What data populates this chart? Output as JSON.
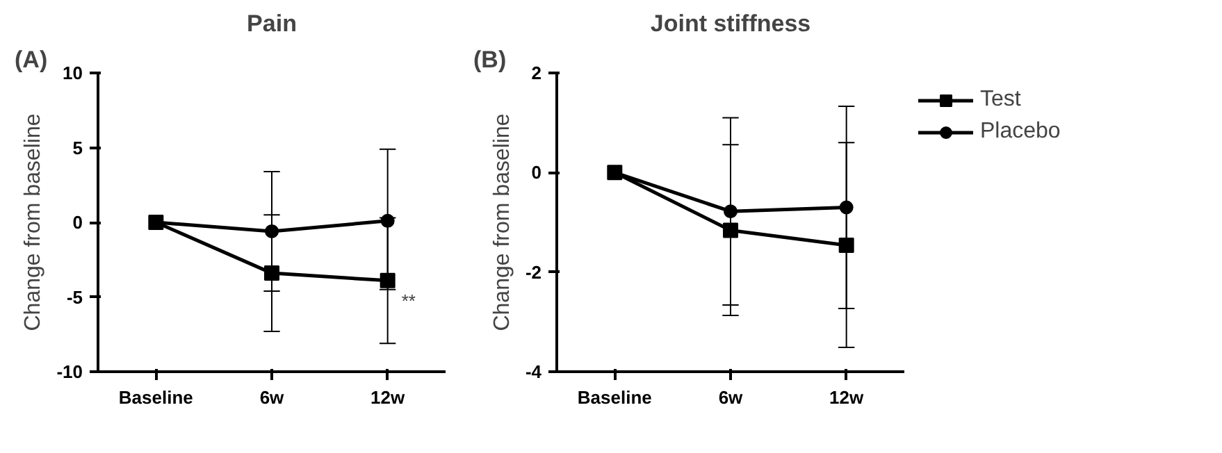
{
  "chart_data": [
    {
      "type": "line",
      "title": "Pain",
      "annotations": [
        "(A)",
        {
          "text": "**",
          "x": "12w",
          "y": -3.9
        }
      ],
      "ylabel": "Change from baseline",
      "categories": [
        "Baseline",
        "6w",
        "12w"
      ],
      "ylim": [
        -10,
        10
      ],
      "yticks": [
        -10,
        -5,
        0,
        5,
        10
      ],
      "grid": false,
      "legend": false,
      "series": [
        {
          "color": "#000000",
          "marker": "square",
          "values": [
            0,
            -3.4,
            -3.9
          ],
          "errors": [
            null,
            [
              -7.3,
              0.5
            ],
            [
              -8.1,
              0.3
            ]
          ]
        },
        {
          "color": "#000000",
          "marker": "circle",
          "values": [
            0,
            -0.6,
            0.1
          ],
          "errors": [
            null,
            [
              -4.6,
              3.4
            ],
            [
              -4.5,
              4.9
            ]
          ]
        }
      ]
    },
    {
      "type": "line",
      "title": "Joint stiffness",
      "annotations": [
        "(B)"
      ],
      "ylabel": "Change from baseline",
      "categories": [
        "Baseline",
        "6w",
        "12w"
      ],
      "ylim": [
        -4,
        2
      ],
      "yticks": [
        -4,
        -2,
        0,
        2
      ],
      "grid": false,
      "legend": "right",
      "series": [
        {
          "name": "Test",
          "color": "#000000",
          "marker": "square",
          "values": [
            0,
            -1.16,
            -1.46
          ],
          "errors": [
            null,
            [
              -2.87,
              0.56
            ],
            [
              -3.51,
              0.6
            ]
          ]
        },
        {
          "name": "Placebo",
          "color": "#000000",
          "marker": "circle",
          "values": [
            0,
            -0.78,
            -0.7
          ],
          "errors": [
            null,
            [
              -2.66,
              1.1
            ],
            [
              -2.73,
              1.33
            ]
          ]
        }
      ]
    }
  ]
}
